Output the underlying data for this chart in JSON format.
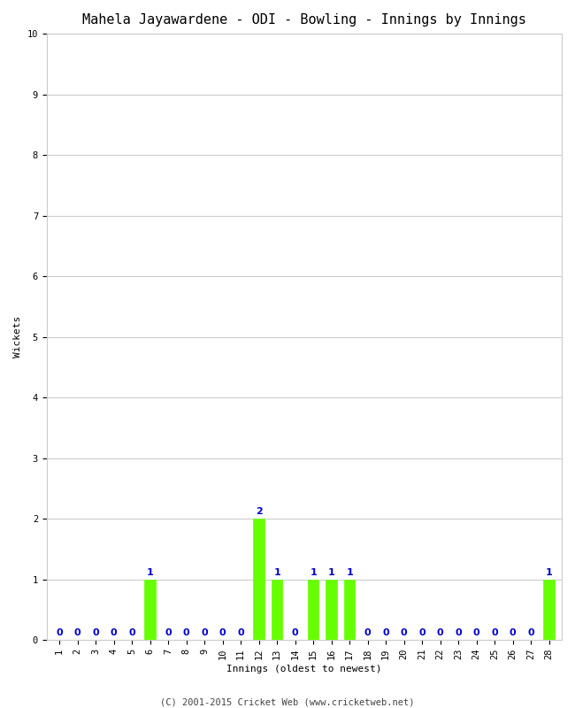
{
  "title": "Mahela Jayawardene - ODI - Bowling - Innings by Innings",
  "xlabel": "Innings (oldest to newest)",
  "ylabel": "Wickets",
  "innings": [
    1,
    2,
    3,
    4,
    5,
    6,
    7,
    8,
    9,
    10,
    11,
    12,
    13,
    14,
    15,
    16,
    17,
    18,
    19,
    20,
    21,
    22,
    23,
    24,
    25,
    26,
    27,
    28
  ],
  "wickets": [
    0,
    0,
    0,
    0,
    0,
    1,
    0,
    0,
    0,
    0,
    0,
    2,
    1,
    0,
    1,
    1,
    1,
    0,
    0,
    0,
    0,
    0,
    0,
    0,
    0,
    0,
    0,
    1
  ],
  "bar_color": "#66ff00",
  "label_color": "#0000cc",
  "ylim": [
    0,
    10
  ],
  "yticks": [
    0,
    1,
    2,
    3,
    4,
    5,
    6,
    7,
    8,
    9,
    10
  ],
  "background_color": "#ffffff",
  "grid_color": "#cccccc",
  "footer": "(C) 2001-2015 Cricket Web (www.cricketweb.net)",
  "title_fontsize": 11,
  "label_fontsize": 8,
  "tick_fontsize": 7.5,
  "footer_fontsize": 7.5
}
